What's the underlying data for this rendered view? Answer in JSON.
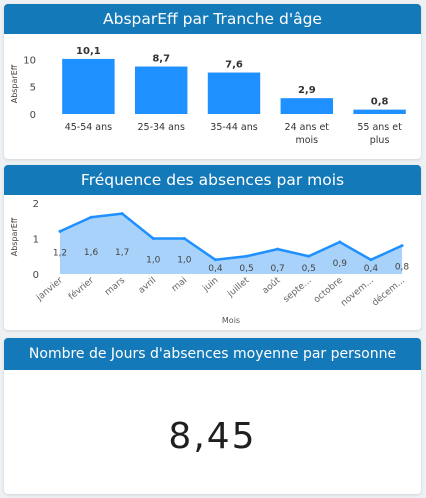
{
  "colors": {
    "header": "#1479b8",
    "bar": "#1e90ff",
    "line": "#1e90ff",
    "area": "#a9d2fa",
    "axis_text": "#444444",
    "grid": "#e1e1e1"
  },
  "panels": {
    "age": {
      "title": "AbsparEff par Tranche d'âge"
    },
    "month": {
      "title": "Fréquence des absences par mois"
    },
    "kpi": {
      "title": "Nombre de Jours d'absences moyenne par personne",
      "value": "8,45"
    }
  },
  "chart_data": [
    {
      "type": "bar",
      "title": "AbsparEff par Tranche d'âge",
      "ylabel": "AbsparEff",
      "xlabel": "",
      "categories": [
        "45-54 ans",
        "25-34 ans",
        "35-44 ans",
        "24 ans et moins",
        "55 ans et plus"
      ],
      "category_lines": [
        [
          "45-54 ans"
        ],
        [
          "25-34 ans"
        ],
        [
          "35-44 ans"
        ],
        [
          "24 ans et",
          "mois"
        ],
        [
          "55 ans et",
          "plus"
        ]
      ],
      "values": [
        10.1,
        8.7,
        7.6,
        2.9,
        0.8
      ],
      "data_labels": [
        "10,1",
        "8,7",
        "7,6",
        "2,9",
        "0,8"
      ],
      "yticks": [
        0,
        5,
        10
      ],
      "ylim": [
        0,
        11
      ],
      "grid": false
    },
    {
      "type": "area",
      "title": "Fréquence des absences par mois",
      "ylabel": "AbsparEff",
      "xlabel": "Mois",
      "categories": [
        "janvier",
        "février",
        "mars",
        "avril",
        "mai",
        "juin",
        "juillet",
        "août",
        "septe...",
        "octobre",
        "novem...",
        "décem..."
      ],
      "values": [
        1.2,
        1.6,
        1.7,
        1.0,
        1.0,
        0.4,
        0.5,
        0.7,
        0.5,
        0.9,
        0.4,
        0.8
      ],
      "data_labels": [
        "1,2",
        "1,6",
        "1,7",
        "1,0",
        "1,0",
        "0,4",
        "0,5",
        "0,7",
        "0,5",
        "0,9",
        "0,4",
        "0,8"
      ],
      "yticks": [
        0,
        1,
        2
      ],
      "ylim": [
        0,
        2
      ],
      "grid": false
    }
  ]
}
